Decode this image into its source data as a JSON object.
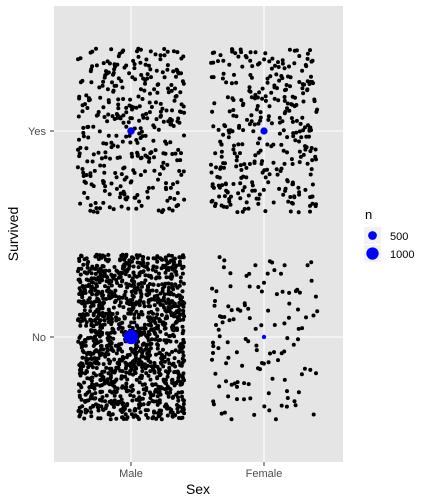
{
  "chart_data": {
    "type": "scatter",
    "title": "",
    "xlabel": "Sex",
    "ylabel": "Survived",
    "x_categories": [
      "Male",
      "Female"
    ],
    "y_categories": [
      "No",
      "Yes"
    ],
    "jitter": {
      "x_width": 0.4,
      "y_height": 0.4
    },
    "counts": [
      {
        "sex": "Male",
        "survived": "Yes",
        "n": 367
      },
      {
        "sex": "Male",
        "survived": "No",
        "n": 1364
      },
      {
        "sex": "Female",
        "survived": "Yes",
        "n": 344
      },
      {
        "sex": "Female",
        "survived": "No",
        "n": 126
      }
    ],
    "legend": {
      "title": "n",
      "position": "right",
      "entries": [
        {
          "label": "500",
          "value": 500
        },
        {
          "label": "1000",
          "value": 1000
        }
      ]
    },
    "grid": true
  },
  "colors": {
    "panel_background": "#E5E5E5",
    "gridline": "#FFFFFF",
    "jitter_point": "#000000",
    "count_point": "#0000FF",
    "axis_text": "#4D4D4D",
    "axis_title": "#000000"
  }
}
